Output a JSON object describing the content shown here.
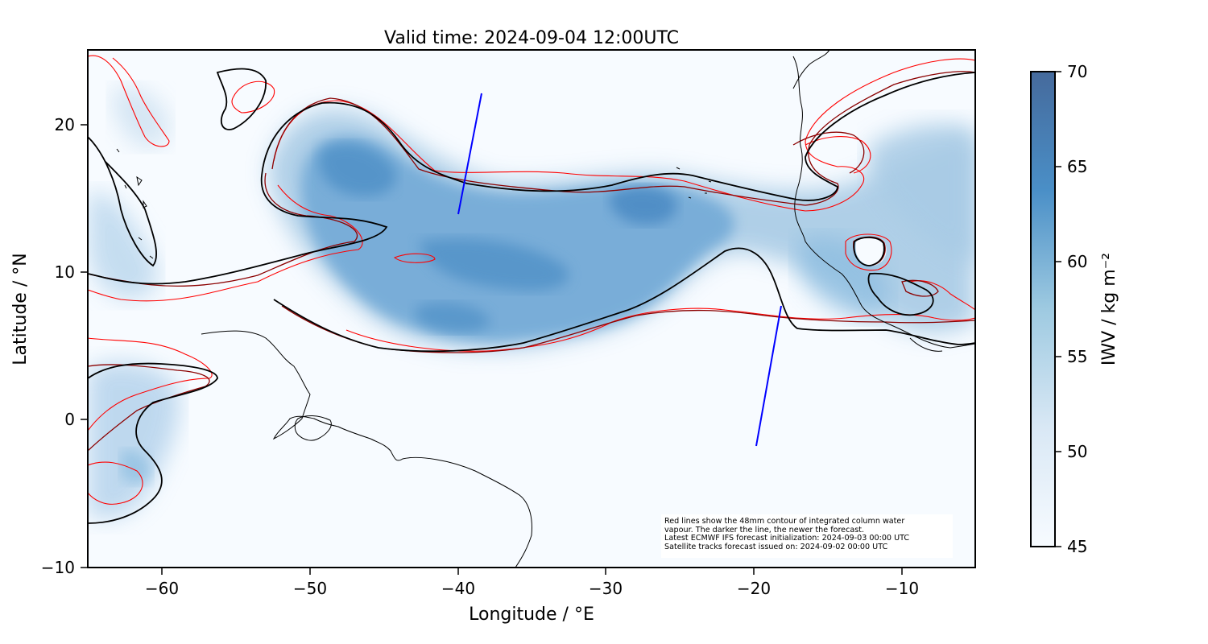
{
  "title": "Valid time: 2024-09-04 12:00UTC",
  "xlabel": "Longitude / °E",
  "ylabel": "Latitude / °N",
  "colorbar_label": "IWV / kg m⁻²",
  "xticks": [
    "−60",
    "−50",
    "−40",
    "−30",
    "−20",
    "−10"
  ],
  "yticks": [
    "−10",
    "0",
    "10",
    "20"
  ],
  "cbar_ticks": [
    "45",
    "50",
    "55",
    "60",
    "65",
    "70"
  ],
  "note_lines": [
    "Red lines show the 48mm contour of integrated column water",
    "vapour. The darker the line, the newer the forecast.",
    "Latest ECMWF IFS forecast initialization: 2024-09-03 00:00 UTC",
    "Satellite tracks forecast issued on: 2024-09-02 00:00 UTC"
  ],
  "chart_data": {
    "type": "heatmap",
    "title": "Valid time: 2024-09-04 12:00UTC",
    "xlabel": "Longitude / °E",
    "ylabel": "Latitude / °N",
    "xlim": [
      -65,
      -5
    ],
    "ylim": [
      -10,
      25
    ],
    "colorbar": {
      "label": "IWV / kg m⁻²",
      "range": [
        45,
        70
      ],
      "colors": [
        "#f7fbff",
        "#c6dbef",
        "#6baed6",
        "#2171b5",
        "#08306b"
      ]
    },
    "contour_level_mm": 48,
    "contour_colors": [
      "#ff0000",
      "#cc0000",
      "#8b0000",
      "#000000"
    ],
    "coastline_color": "#000000",
    "satellite_track_color": "#0000ff",
    "satellite_tracks": [
      {
        "points": [
          [
            -38.3,
            22.0
          ],
          [
            -39.8,
            14.0
          ]
        ]
      },
      {
        "points": [
          [
            -18.1,
            7.7
          ],
          [
            -19.8,
            -1.8
          ]
        ]
      }
    ]
  },
  "colors": {
    "track": "#0000ff",
    "frame": "#000000"
  }
}
